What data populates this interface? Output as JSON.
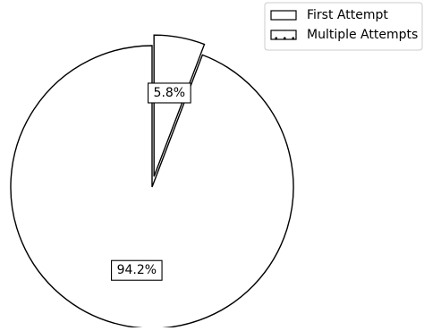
{
  "chart_data": {
    "type": "pie",
    "title": "",
    "labels": [
      "First Attempt",
      "Multiple Attempts"
    ],
    "values": [
      94.2,
      5.8
    ],
    "value_labels": [
      "94.2%",
      "5.8%"
    ],
    "hatches": [
      "none",
      "dots"
    ],
    "exploded": [
      false,
      true
    ],
    "start_angle_deg": 90,
    "direction": "counterclockwise",
    "legend": {
      "placement": "top-right",
      "entries": [
        "First Attempt",
        "Multiple Attempts"
      ]
    },
    "colors": {
      "fill": "#ffffff",
      "edge": "#000000"
    }
  }
}
